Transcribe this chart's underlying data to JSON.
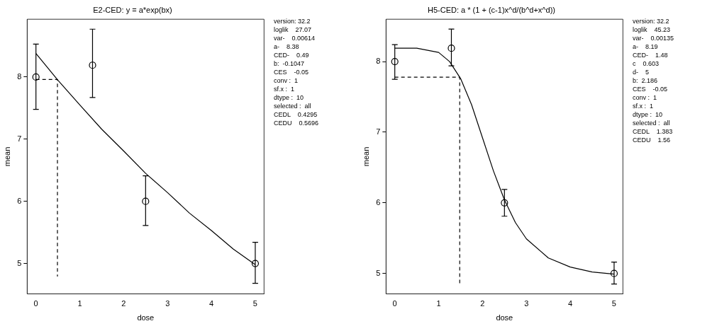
{
  "chart_data": [
    {
      "type": "scatter",
      "title": "E2-CED: y = a*exp(bx)",
      "xlabel": "dose",
      "ylabel": "mean",
      "xlim": [
        -0.2,
        5.2
      ],
      "ylim": [
        4.51,
        8.93
      ],
      "xticks": [
        0,
        1,
        2,
        3,
        4,
        5
      ],
      "yticks": [
        5,
        6,
        7,
        8
      ],
      "series": [
        {
          "type": "scatter",
          "x": [
            0,
            1.29,
            2.5,
            5
          ],
          "values": [
            8,
            8.19,
            6,
            5
          ],
          "errors": [
            [
              7.48,
              8.53
            ],
            [
              7.67,
              8.77
            ],
            [
              5.61,
              6.41
            ],
            [
              4.68,
              5.34
            ]
          ],
          "color": "#000000",
          "marker": "circle"
        },
        {
          "type": "line",
          "x": [
            0,
            0.5,
            1,
            1.5,
            2,
            2.5,
            3,
            3.5,
            4,
            4.5,
            5
          ],
          "values": [
            8.38,
            7.95,
            7.55,
            7.16,
            6.81,
            6.45,
            6.14,
            5.81,
            5.53,
            5.23,
            4.98
          ],
          "color": "#000000",
          "marker": "none",
          "line_style": "solid"
        },
        {
          "type": "line",
          "x": [
            0,
            0.49,
            0.49
          ],
          "values": [
            7.96,
            7.96,
            4.79
          ],
          "color": "#000000",
          "marker": "none",
          "line_style": "dashed"
        }
      ],
      "annotations": [
        "version: 32.2",
        "loglik    27.07",
        "var-    0.00614",
        "a-    8.38",
        "CED-    0.49",
        "b:  -0.1047",
        "CES    -0.05",
        "conv :  1",
        "sf.x :  1",
        "dtype :  10",
        "selected :  all",
        "CEDL    0.4295",
        "CEDU    0.5696"
      ]
    },
    {
      "type": "scatter",
      "title": "H5-CED: a * (1 + (c-1)x^d/(b^d+x^d))",
      "xlabel": "dose",
      "ylabel": "mean",
      "xlim": [
        -0.2,
        5.2
      ],
      "ylim": [
        4.71,
        8.6
      ],
      "xticks": [
        0,
        1,
        2,
        3,
        4,
        5
      ],
      "yticks": [
        5,
        6,
        7,
        8
      ],
      "series": [
        {
          "type": "scatter",
          "x": [
            0,
            1.29,
            2.5,
            5
          ],
          "values": [
            8,
            8.19,
            6,
            5
          ],
          "errors": [
            [
              7.75,
              8.24
            ],
            [
              7.94,
              8.46
            ],
            [
              5.81,
              6.19
            ],
            [
              4.85,
              5.16
            ]
          ],
          "color": "#000000",
          "marker": "circle"
        },
        {
          "type": "line",
          "x": [
            0,
            0.5,
            1,
            1.25,
            1.5,
            1.75,
            2,
            2.25,
            2.5,
            2.75,
            3,
            3.5,
            4,
            4.5,
            5
          ],
          "values": [
            8.19,
            8.19,
            8.13,
            8.0,
            7.76,
            7.39,
            6.92,
            6.45,
            6.04,
            5.72,
            5.49,
            5.22,
            5.09,
            5.02,
            4.99
          ],
          "color": "#000000",
          "marker": "none",
          "line_style": "solid"
        },
        {
          "type": "line",
          "x": [
            0,
            1.48,
            1.48
          ],
          "values": [
            7.78,
            7.78,
            4.85
          ],
          "color": "#000000",
          "marker": "none",
          "line_style": "dashed"
        }
      ],
      "annotations": [
        "version: 32.2",
        "loglik    45.23",
        "var-    0.00135",
        "a-    8.19",
        "CED-    1.48",
        "c    0.603",
        "d-    5",
        "b:  2.186",
        "CES    -0.05",
        "conv :  1",
        "sf.x :  1",
        "dtype :  10",
        "selected :  all",
        "CEDL    1.383",
        "CEDU    1.56"
      ]
    }
  ]
}
